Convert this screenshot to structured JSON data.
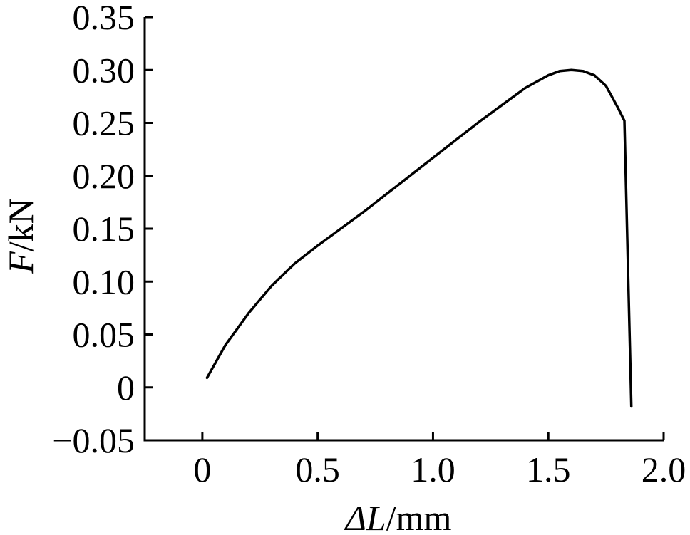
{
  "chart_data": {
    "type": "line",
    "title": "",
    "xlabel_symbol": "ΔL",
    "xlabel_unit": "/mm",
    "ylabel_symbol": "F",
    "ylabel_unit": "/kN",
    "xlim": [
      -0.25,
      2.0
    ],
    "ylim": [
      -0.05,
      0.35
    ],
    "x_ticks": [
      0,
      0.5,
      1.0,
      1.5,
      2.0
    ],
    "x_tick_labels": [
      "0",
      "0.5",
      "1.0",
      "1.5",
      "2.0"
    ],
    "y_ticks": [
      -0.05,
      0,
      0.05,
      0.1,
      0.15,
      0.2,
      0.25,
      0.3,
      0.35
    ],
    "y_tick_labels": [
      "−0.05",
      "0",
      "0.05",
      "0.10",
      "0.15",
      "0.20",
      "0.25",
      "0.30",
      "0.35"
    ],
    "grid": false,
    "series": [
      {
        "color": "#000000",
        "x": [
          0.02,
          0.1,
          0.2,
          0.3,
          0.4,
          0.5,
          0.6,
          0.7,
          0.8,
          0.9,
          1.0,
          1.1,
          1.2,
          1.3,
          1.4,
          1.5,
          1.55,
          1.6,
          1.65,
          1.7,
          1.75,
          1.8,
          1.83,
          1.86
        ],
        "y": [
          0.009,
          0.04,
          0.07,
          0.096,
          0.117,
          0.134,
          0.15,
          0.166,
          0.183,
          0.2,
          0.217,
          0.234,
          0.251,
          0.267,
          0.283,
          0.295,
          0.299,
          0.3,
          0.299,
          0.295,
          0.285,
          0.265,
          0.252,
          -0.018
        ]
      }
    ]
  }
}
